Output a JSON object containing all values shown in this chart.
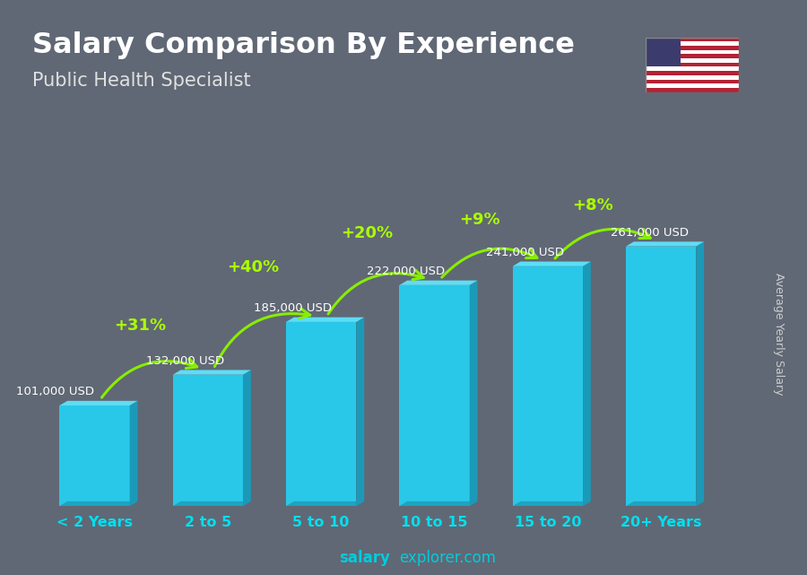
{
  "title": "Salary Comparison By Experience",
  "subtitle": "Public Health Specialist",
  "categories": [
    "< 2 Years",
    "2 to 5",
    "5 to 10",
    "10 to 15",
    "15 to 20",
    "20+ Years"
  ],
  "values": [
    101000,
    132000,
    185000,
    222000,
    241000,
    261000
  ],
  "salary_labels": [
    "101,000 USD",
    "132,000 USD",
    "185,000 USD",
    "222,000 USD",
    "241,000 USD",
    "261,000 USD"
  ],
  "pct_labels": [
    "+31%",
    "+40%",
    "+20%",
    "+9%",
    "+8%"
  ],
  "bar_face_color": "#29c8e8",
  "bar_right_color": "#1a9ab8",
  "bar_top_color": "#5dddf5",
  "bar_bottom_color": "#1a9ab8",
  "ylabel": "Average Yearly Salary",
  "watermark_bold": "salary",
  "watermark_regular": "explorer.com",
  "bg_color": "#5a6070",
  "title_color": "#ffffff",
  "subtitle_color": "#e0e0e0",
  "salary_label_color": "#ffffff",
  "pct_color": "#aaff00",
  "cat_color": "#00e0f0",
  "watermark_color": "#00ccdd",
  "ylabel_color": "#cccccc",
  "arrow_color": "#88ee00"
}
